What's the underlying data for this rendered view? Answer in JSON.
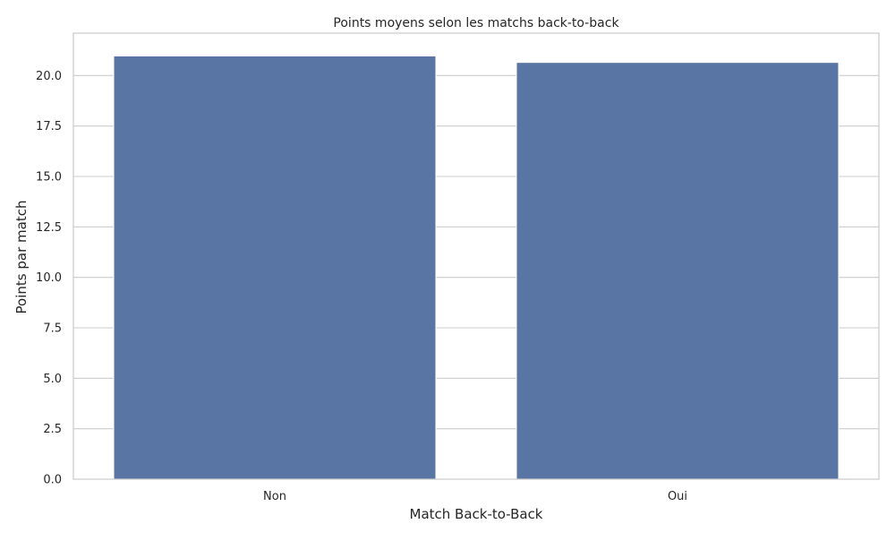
{
  "chart_data": {
    "type": "bar",
    "title": "Points moyens selon les matchs back-to-back",
    "xlabel": "Match Back-to-Back",
    "ylabel": "Points par match",
    "categories": [
      "Non",
      "Oui"
    ],
    "values": [
      20.97,
      20.65
    ],
    "ylim": [
      0,
      22.1
    ],
    "yticks": [
      "0.0",
      "2.5",
      "5.0",
      "7.5",
      "10.0",
      "12.5",
      "15.0",
      "17.5",
      "20.0"
    ],
    "ytick_values": [
      0,
      2.5,
      5,
      7.5,
      10,
      12.5,
      15,
      17.5,
      20
    ],
    "grid": true,
    "grid_axis": "y",
    "bar_color": "#5975a4",
    "grid_color": "#cccccc",
    "legend": false
  }
}
